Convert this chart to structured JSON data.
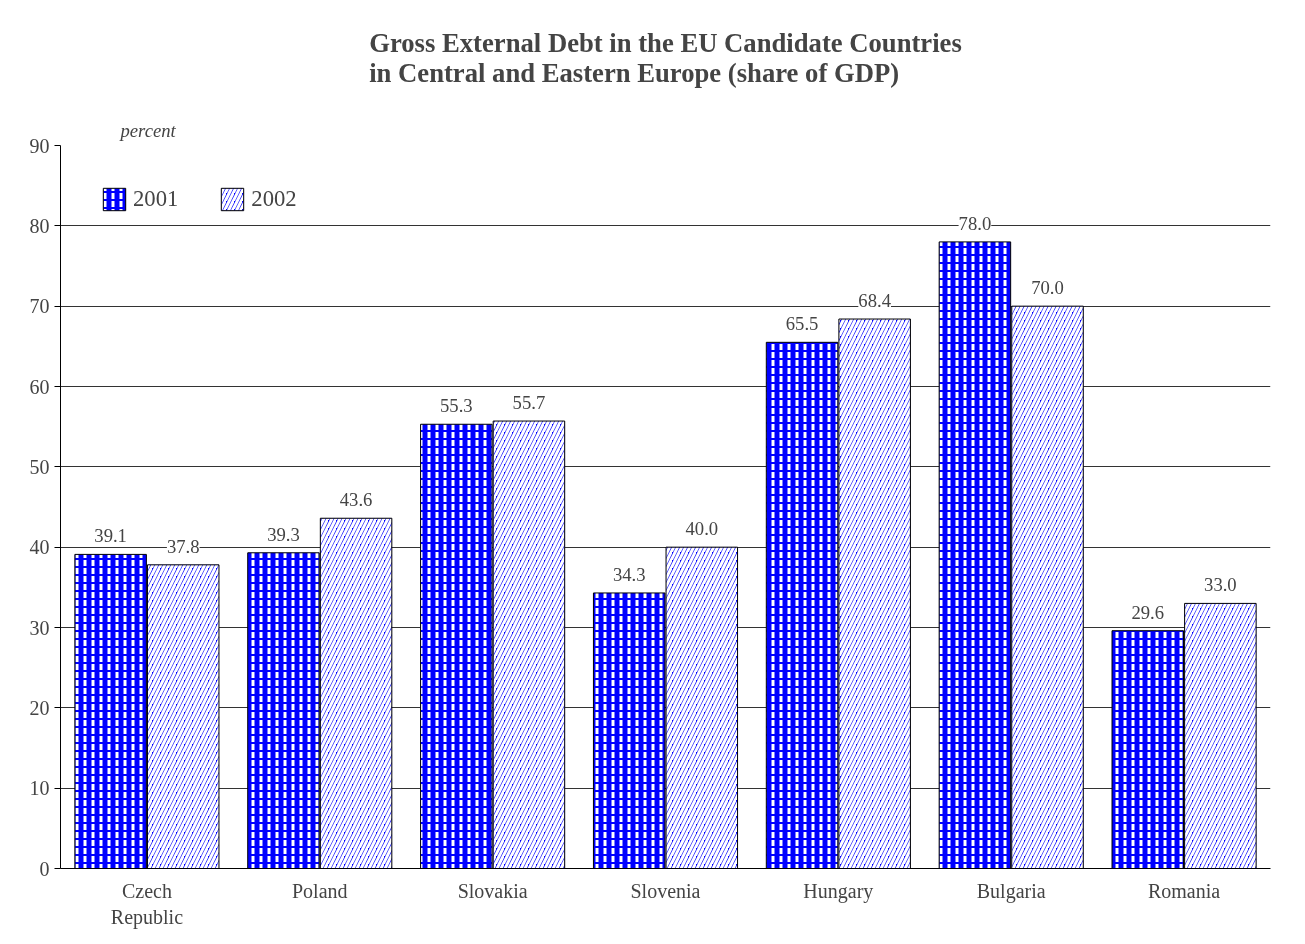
{
  "chart_data": {
    "type": "bar",
    "title": "Gross External Debt in the EU Candidate Countries\nin Central and Eastern Europe (share of GDP)",
    "ylabel": "percent",
    "categories": [
      "Czech Republic",
      "Poland",
      "Slovakia",
      "Slovenia",
      "Hungary",
      "Bulgaria",
      "Romania"
    ],
    "series": [
      {
        "name": "2001",
        "color": "#0000ff",
        "values": [
          39.1,
          39.3,
          55.3,
          34.3,
          65.5,
          78.0,
          29.6
        ],
        "value_labels": [
          "39.1",
          "39.3",
          "55.3",
          "34.3",
          "65.5",
          "78.0",
          "29.6"
        ]
      },
      {
        "name": "2002",
        "color": "#0000ff",
        "values": [
          37.8,
          43.6,
          55.7,
          40.0,
          68.4,
          70.0,
          33.0
        ],
        "value_labels": [
          "37.8",
          "43.6",
          "55.7",
          "40.0",
          "68.4",
          "70.0",
          "33.0"
        ]
      }
    ],
    "ylim": [
      0,
      90
    ],
    "yticks": [
      0,
      10,
      20,
      30,
      40,
      50,
      60,
      70,
      80,
      90
    ],
    "grid": "y",
    "legend": "top left"
  }
}
